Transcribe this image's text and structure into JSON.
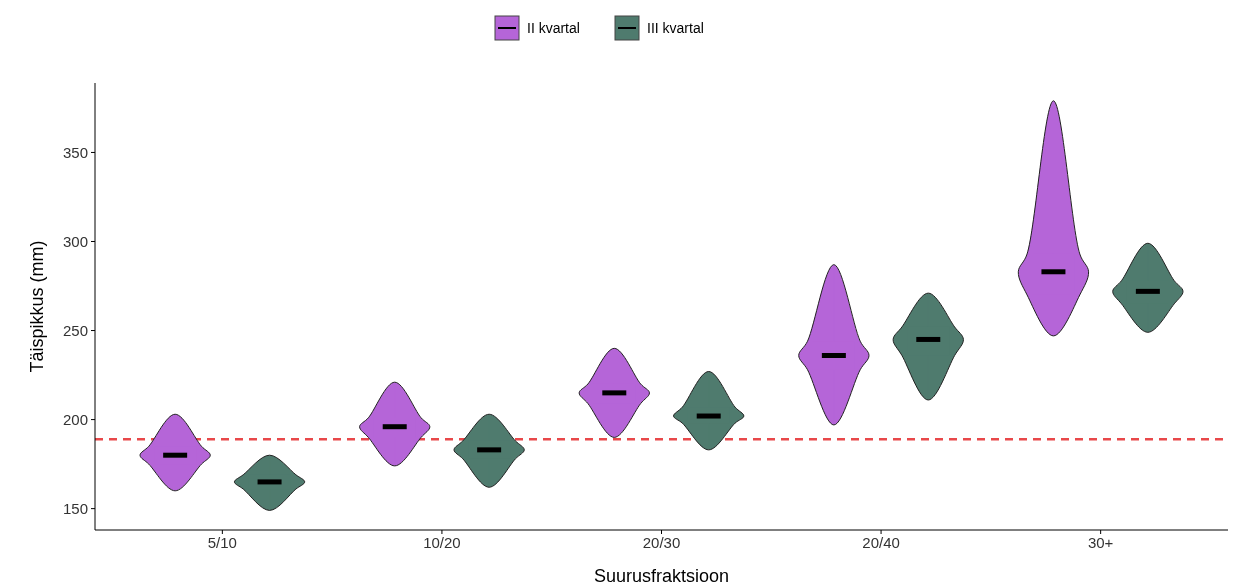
{
  "chart_data": {
    "type": "box",
    "xlabel": "Suurusfraktsioon",
    "ylabel": "Täispikkus (mm)",
    "categories": [
      "5/10",
      "10/20",
      "20/30",
      "20/40",
      "30+"
    ],
    "series": [
      {
        "name": "II kvartal",
        "color": "#b565d8",
        "boxes": [
          {
            "low": 160,
            "q1": 175,
            "median": 180,
            "q3": 185,
            "high": 203
          },
          {
            "low": 174,
            "q1": 190,
            "median": 196,
            "q3": 201,
            "high": 221
          },
          {
            "low": 190,
            "q1": 209,
            "median": 215,
            "q3": 220,
            "high": 240
          },
          {
            "low": 197,
            "q1": 228,
            "median": 236,
            "q3": 244,
            "high": 287
          },
          {
            "low": 247,
            "q1": 270,
            "median": 283,
            "q3": 293,
            "high": 379
          }
        ]
      },
      {
        "name": "III kvartal",
        "color": "#4f7b6e",
        "boxes": [
          {
            "low": 149,
            "q1": 161,
            "median": 165,
            "q3": 169,
            "high": 180
          },
          {
            "low": 162,
            "q1": 178,
            "median": 183,
            "q3": 188,
            "high": 203
          },
          {
            "low": 183,
            "q1": 198,
            "median": 202,
            "q3": 207,
            "high": 227
          },
          {
            "low": 211,
            "q1": 236,
            "median": 245,
            "q3": 252,
            "high": 271
          },
          {
            "low": 249,
            "q1": 265,
            "median": 272,
            "q3": 278,
            "high": 299
          }
        ]
      }
    ],
    "ylim": [
      138,
      389
    ],
    "yticks": [
      150,
      200,
      250,
      300,
      350
    ],
    "ref_lines": [
      {
        "axis": "y",
        "value": 189,
        "color": "#e8484a",
        "line_style": "dashed"
      }
    ],
    "legend": "top",
    "grid": false
  }
}
